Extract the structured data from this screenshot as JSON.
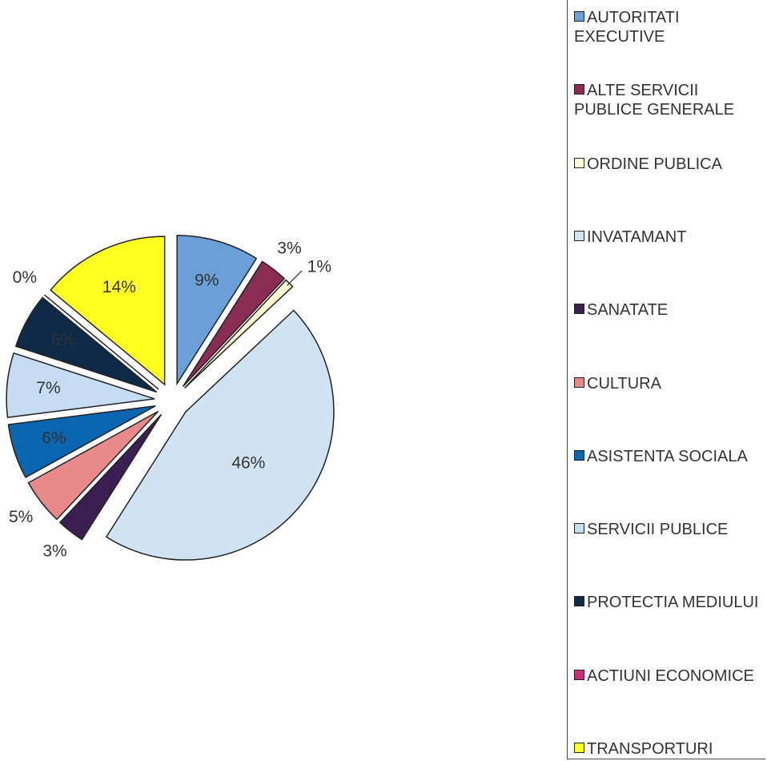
{
  "chart_data": {
    "type": "pie",
    "categories": [
      "AUTORITATI EXECUTIVE",
      "ALTE SERVICII PUBLICE GENERALE",
      "ORDINE PUBLICA",
      "INVATAMANT",
      "SANATATE",
      "CULTURA",
      "ASISTENTA SOCIALA",
      "SERVICII PUBLICE",
      "PROTECTIA MEDIULUI",
      "ACTIUNI ECONOMICE",
      "TRANSPORTURI"
    ],
    "values": [
      9,
      3,
      1,
      46,
      3,
      5,
      6,
      7,
      6,
      0,
      14
    ],
    "value_labels": [
      "9%",
      "3%",
      "1%",
      "46%",
      "3%",
      "5%",
      "6%",
      "7%",
      "6%",
      "0%",
      "14%"
    ],
    "colors": [
      "#6a9fd8",
      "#8b2c55",
      "#fffbd2",
      "#cfe3f3",
      "#3b1f52",
      "#e88a8a",
      "#0a66b0",
      "#c5dcf2",
      "#0f2a47",
      "#d02a7a",
      "#ffff22"
    ],
    "legend": "right"
  }
}
